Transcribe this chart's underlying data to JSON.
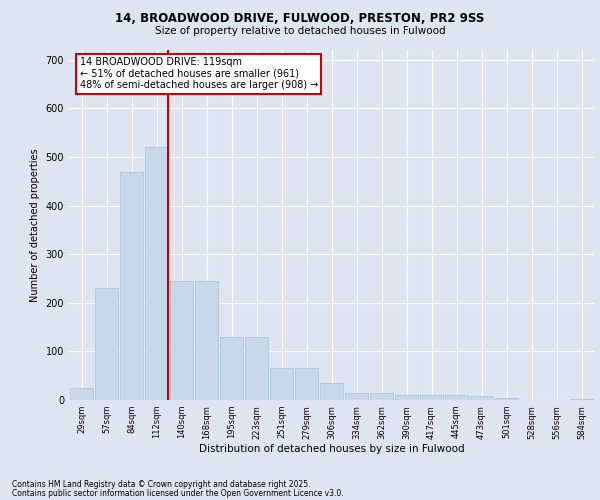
{
  "title1": "14, BROADWOOD DRIVE, FULWOOD, PRESTON, PR2 9SS",
  "title2": "Size of property relative to detached houses in Fulwood",
  "xlabel": "Distribution of detached houses by size in Fulwood",
  "ylabel": "Number of detached properties",
  "categories": [
    "29sqm",
    "57sqm",
    "84sqm",
    "112sqm",
    "140sqm",
    "168sqm",
    "195sqm",
    "223sqm",
    "251sqm",
    "279sqm",
    "306sqm",
    "334sqm",
    "362sqm",
    "390sqm",
    "417sqm",
    "445sqm",
    "473sqm",
    "501sqm",
    "528sqm",
    "556sqm",
    "584sqm"
  ],
  "values": [
    25,
    230,
    470,
    520,
    245,
    245,
    130,
    130,
    65,
    65,
    35,
    15,
    15,
    10,
    10,
    10,
    8,
    5,
    0,
    0,
    2
  ],
  "bar_color": "#c6d8ea",
  "bar_edgecolor": "#a8c0d4",
  "redline_index": 3,
  "redline_label": "14 BROADWOOD DRIVE: 119sqm",
  "annotation_line1": "← 51% of detached houses are smaller (961)",
  "annotation_line2": "48% of semi-detached houses are larger (908) →",
  "annotation_box_facecolor": "#ffffff",
  "annotation_box_edgecolor": "#cc0000",
  "redline_color": "#cc0000",
  "ylim": [
    0,
    720
  ],
  "yticks": [
    0,
    100,
    200,
    300,
    400,
    500,
    600,
    700
  ],
  "background_color": "#dde6f0",
  "plot_bg_color": "#dde6f0",
  "grid_color": "#ffffff",
  "footer1": "Contains HM Land Registry data © Crown copyright and database right 2025.",
  "footer2": "Contains public sector information licensed under the Open Government Licence v3.0."
}
